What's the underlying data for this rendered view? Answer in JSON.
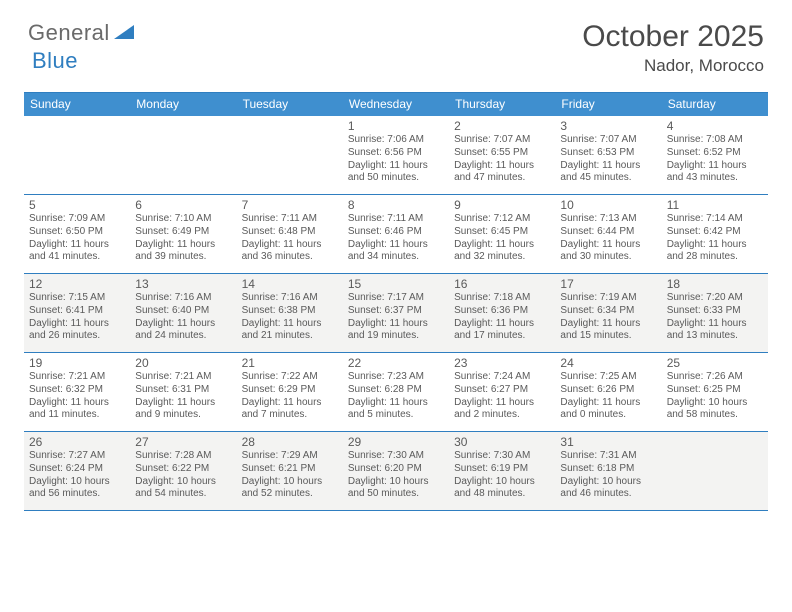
{
  "logo": {
    "text1": "General",
    "text2": "Blue"
  },
  "title": "October 2025",
  "location": "Nador, Morocco",
  "colors": {
    "brand": "#2f7ec0",
    "header_bg": "#3f8fcf",
    "header_fg": "#ffffff",
    "text": "#4a4a4a",
    "alt_row_bg": "#f3f3f2",
    "bg": "#ffffff"
  },
  "day_headers": [
    "Sunday",
    "Monday",
    "Tuesday",
    "Wednesday",
    "Thursday",
    "Friday",
    "Saturday"
  ],
  "weeks": [
    {
      "alt": false,
      "cells": [
        {
          "num": "",
          "lines": []
        },
        {
          "num": "",
          "lines": []
        },
        {
          "num": "",
          "lines": []
        },
        {
          "num": "1",
          "lines": [
            "Sunrise: 7:06 AM",
            "Sunset: 6:56 PM",
            "Daylight: 11 hours",
            "and 50 minutes."
          ]
        },
        {
          "num": "2",
          "lines": [
            "Sunrise: 7:07 AM",
            "Sunset: 6:55 PM",
            "Daylight: 11 hours",
            "and 47 minutes."
          ]
        },
        {
          "num": "3",
          "lines": [
            "Sunrise: 7:07 AM",
            "Sunset: 6:53 PM",
            "Daylight: 11 hours",
            "and 45 minutes."
          ]
        },
        {
          "num": "4",
          "lines": [
            "Sunrise: 7:08 AM",
            "Sunset: 6:52 PM",
            "Daylight: 11 hours",
            "and 43 minutes."
          ]
        }
      ]
    },
    {
      "alt": false,
      "cells": [
        {
          "num": "5",
          "lines": [
            "Sunrise: 7:09 AM",
            "Sunset: 6:50 PM",
            "Daylight: 11 hours",
            "and 41 minutes."
          ]
        },
        {
          "num": "6",
          "lines": [
            "Sunrise: 7:10 AM",
            "Sunset: 6:49 PM",
            "Daylight: 11 hours",
            "and 39 minutes."
          ]
        },
        {
          "num": "7",
          "lines": [
            "Sunrise: 7:11 AM",
            "Sunset: 6:48 PM",
            "Daylight: 11 hours",
            "and 36 minutes."
          ]
        },
        {
          "num": "8",
          "lines": [
            "Sunrise: 7:11 AM",
            "Sunset: 6:46 PM",
            "Daylight: 11 hours",
            "and 34 minutes."
          ]
        },
        {
          "num": "9",
          "lines": [
            "Sunrise: 7:12 AM",
            "Sunset: 6:45 PM",
            "Daylight: 11 hours",
            "and 32 minutes."
          ]
        },
        {
          "num": "10",
          "lines": [
            "Sunrise: 7:13 AM",
            "Sunset: 6:44 PM",
            "Daylight: 11 hours",
            "and 30 minutes."
          ]
        },
        {
          "num": "11",
          "lines": [
            "Sunrise: 7:14 AM",
            "Sunset: 6:42 PM",
            "Daylight: 11 hours",
            "and 28 minutes."
          ]
        }
      ]
    },
    {
      "alt": true,
      "cells": [
        {
          "num": "12",
          "lines": [
            "Sunrise: 7:15 AM",
            "Sunset: 6:41 PM",
            "Daylight: 11 hours",
            "and 26 minutes."
          ]
        },
        {
          "num": "13",
          "lines": [
            "Sunrise: 7:16 AM",
            "Sunset: 6:40 PM",
            "Daylight: 11 hours",
            "and 24 minutes."
          ]
        },
        {
          "num": "14",
          "lines": [
            "Sunrise: 7:16 AM",
            "Sunset: 6:38 PM",
            "Daylight: 11 hours",
            "and 21 minutes."
          ]
        },
        {
          "num": "15",
          "lines": [
            "Sunrise: 7:17 AM",
            "Sunset: 6:37 PM",
            "Daylight: 11 hours",
            "and 19 minutes."
          ]
        },
        {
          "num": "16",
          "lines": [
            "Sunrise: 7:18 AM",
            "Sunset: 6:36 PM",
            "Daylight: 11 hours",
            "and 17 minutes."
          ]
        },
        {
          "num": "17",
          "lines": [
            "Sunrise: 7:19 AM",
            "Sunset: 6:34 PM",
            "Daylight: 11 hours",
            "and 15 minutes."
          ]
        },
        {
          "num": "18",
          "lines": [
            "Sunrise: 7:20 AM",
            "Sunset: 6:33 PM",
            "Daylight: 11 hours",
            "and 13 minutes."
          ]
        }
      ]
    },
    {
      "alt": false,
      "cells": [
        {
          "num": "19",
          "lines": [
            "Sunrise: 7:21 AM",
            "Sunset: 6:32 PM",
            "Daylight: 11 hours",
            "and 11 minutes."
          ]
        },
        {
          "num": "20",
          "lines": [
            "Sunrise: 7:21 AM",
            "Sunset: 6:31 PM",
            "Daylight: 11 hours",
            "and 9 minutes."
          ]
        },
        {
          "num": "21",
          "lines": [
            "Sunrise: 7:22 AM",
            "Sunset: 6:29 PM",
            "Daylight: 11 hours",
            "and 7 minutes."
          ]
        },
        {
          "num": "22",
          "lines": [
            "Sunrise: 7:23 AM",
            "Sunset: 6:28 PM",
            "Daylight: 11 hours",
            "and 5 minutes."
          ]
        },
        {
          "num": "23",
          "lines": [
            "Sunrise: 7:24 AM",
            "Sunset: 6:27 PM",
            "Daylight: 11 hours",
            "and 2 minutes."
          ]
        },
        {
          "num": "24",
          "lines": [
            "Sunrise: 7:25 AM",
            "Sunset: 6:26 PM",
            "Daylight: 11 hours",
            "and 0 minutes."
          ]
        },
        {
          "num": "25",
          "lines": [
            "Sunrise: 7:26 AM",
            "Sunset: 6:25 PM",
            "Daylight: 10 hours",
            "and 58 minutes."
          ]
        }
      ]
    },
    {
      "alt": true,
      "cells": [
        {
          "num": "26",
          "lines": [
            "Sunrise: 7:27 AM",
            "Sunset: 6:24 PM",
            "Daylight: 10 hours",
            "and 56 minutes."
          ]
        },
        {
          "num": "27",
          "lines": [
            "Sunrise: 7:28 AM",
            "Sunset: 6:22 PM",
            "Daylight: 10 hours",
            "and 54 minutes."
          ]
        },
        {
          "num": "28",
          "lines": [
            "Sunrise: 7:29 AM",
            "Sunset: 6:21 PM",
            "Daylight: 10 hours",
            "and 52 minutes."
          ]
        },
        {
          "num": "29",
          "lines": [
            "Sunrise: 7:30 AM",
            "Sunset: 6:20 PM",
            "Daylight: 10 hours",
            "and 50 minutes."
          ]
        },
        {
          "num": "30",
          "lines": [
            "Sunrise: 7:30 AM",
            "Sunset: 6:19 PM",
            "Daylight: 10 hours",
            "and 48 minutes."
          ]
        },
        {
          "num": "31",
          "lines": [
            "Sunrise: 7:31 AM",
            "Sunset: 6:18 PM",
            "Daylight: 10 hours",
            "and 46 minutes."
          ]
        },
        {
          "num": "",
          "lines": []
        }
      ]
    }
  ]
}
